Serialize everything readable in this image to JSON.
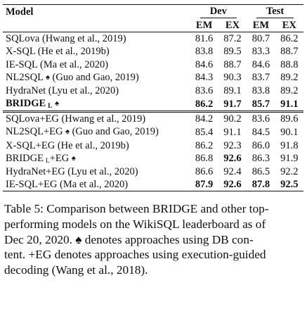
{
  "table": {
    "header": {
      "model_label": "Model",
      "dev_label": "Dev",
      "test_label": "Test",
      "em_label": "EM",
      "ex_label": "EX"
    },
    "group1": [
      {
        "model": "SQLova (Hwang et al., 2019)",
        "sub": "",
        "spade": false,
        "dev_em": "81.6",
        "dev_ex": "87.2",
        "test_em": "80.7",
        "test_ex": "86.2",
        "bold": [
          false,
          false,
          false,
          false
        ]
      },
      {
        "model": "X-SQL (He et al., 2019b)",
        "sub": "",
        "spade": false,
        "dev_em": "83.8",
        "dev_ex": "89.5",
        "test_em": "83.3",
        "test_ex": "88.7",
        "bold": [
          false,
          false,
          false,
          false
        ]
      },
      {
        "model": "IE-SQL (Ma et al., 2020)",
        "sub": "",
        "spade": false,
        "dev_em": "84.6",
        "dev_ex": "88.7",
        "test_em": "84.6",
        "test_ex": "88.8",
        "bold": [
          false,
          false,
          false,
          false
        ]
      },
      {
        "model": "NL2SQL",
        "suffix": "(Guo and Gao, 2019)",
        "sub": "",
        "spade": true,
        "dev_em": "84.3",
        "dev_ex": "90.3",
        "test_em": "83.7",
        "test_ex": "89.2",
        "bold": [
          false,
          false,
          false,
          false
        ]
      },
      {
        "model": "HydraNet (Lyu et al., 2020)",
        "sub": "",
        "spade": false,
        "dev_em": "83.6",
        "dev_ex": "89.1",
        "test_em": "83.8",
        "test_ex": "89.2",
        "bold": [
          false,
          false,
          false,
          false
        ]
      },
      {
        "model": "BRIDGE",
        "sub": "L",
        "spade": true,
        "dev_em": "86.2",
        "dev_ex": "91.7",
        "test_em": "85.7",
        "test_ex": "91.1",
        "bold": [
          true,
          true,
          true,
          true
        ]
      }
    ],
    "group2": [
      {
        "model": "SQLova+EG (Hwang et al., 2019)",
        "dev_em": "84.2",
        "dev_ex": "90.2",
        "test_em": "83.6",
        "test_ex": "89.6",
        "bold": [
          false,
          false,
          false,
          false
        ]
      },
      {
        "model": "NL2SQL+EG",
        "suffix": "(Guo and Gao, 2019)",
        "spade": true,
        "dev_em": "85.4",
        "dev_ex": "91.1",
        "test_em": "84.5",
        "test_ex": "90.1",
        "bold": [
          false,
          false,
          false,
          false
        ]
      },
      {
        "model": "X-SQL+EG (He et al., 2019b)",
        "dev_em": "86.2",
        "dev_ex": "92.3",
        "test_em": "86.0",
        "test_ex": "91.8",
        "bold": [
          false,
          false,
          false,
          false
        ]
      },
      {
        "model": "BRIDGE",
        "sub": "L",
        "suffix2": "+EG",
        "spade": true,
        "dev_em": "86.8",
        "dev_ex": "92.6",
        "test_em": "86.3",
        "test_ex": "91.9",
        "bold": [
          false,
          true,
          false,
          false
        ]
      },
      {
        "model": "HydraNet+EG (Lyu et al., 2020)",
        "dev_em": "86.6",
        "dev_ex": "92.4",
        "test_em": "86.5",
        "test_ex": "92.2",
        "bold": [
          false,
          false,
          false,
          false
        ]
      },
      {
        "model": "IE-SQL+EG (Ma et al., 2020)",
        "dev_em": "87.9",
        "dev_ex": "92.6",
        "test_em": "87.8",
        "test_ex": "92.5",
        "bold": [
          true,
          true,
          true,
          true
        ]
      }
    ]
  },
  "caption": {
    "lines": [
      "Table 5:  Comparison between BRIDGE and other top-",
      "performing models on the WikiSQL leaderboard as of",
      "Dec 20, 2020.   ♠ denotes approaches using DB con-",
      "tent.  +EG denotes approaches using execution-guided",
      "decoding (Wang et al., 2018)."
    ]
  }
}
